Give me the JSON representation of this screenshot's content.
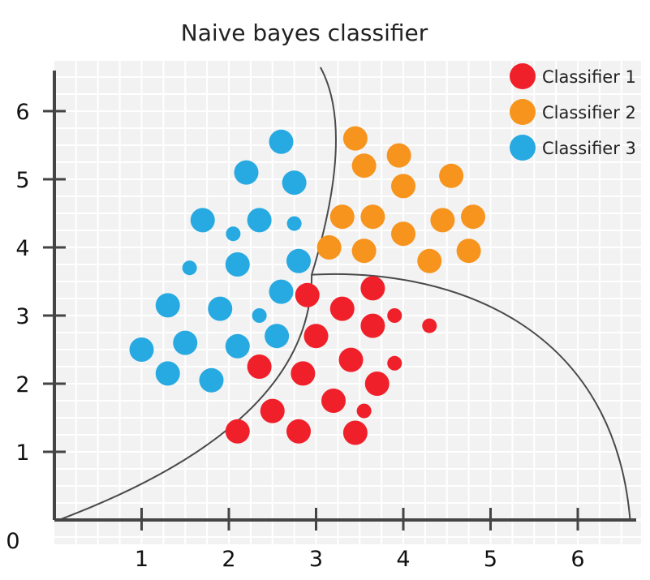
{
  "chart_data": {
    "type": "scatter",
    "title": "Naive bayes classifier",
    "xlabel": "",
    "ylabel": "",
    "xlim": [
      0,
      6.6
    ],
    "ylim": [
      0,
      6.6
    ],
    "x_ticks": [
      1,
      2,
      3,
      4,
      5,
      6
    ],
    "y_ticks": [
      1,
      2,
      3,
      4,
      5,
      6
    ],
    "origin_label": "0",
    "grid": true,
    "legend": "top-right",
    "series": [
      {
        "name": "Classifier 1",
        "color": "#f0202a",
        "points": [
          {
            "x": 2.9,
            "y": 3.3,
            "size": "large"
          },
          {
            "x": 3.3,
            "y": 3.1,
            "size": "large"
          },
          {
            "x": 3.65,
            "y": 3.4,
            "size": "large"
          },
          {
            "x": 3.9,
            "y": 3.0,
            "size": "small"
          },
          {
            "x": 4.3,
            "y": 2.85,
            "size": "small"
          },
          {
            "x": 3.65,
            "y": 2.85,
            "size": "large"
          },
          {
            "x": 3.0,
            "y": 2.7,
            "size": "large"
          },
          {
            "x": 3.4,
            "y": 2.35,
            "size": "large"
          },
          {
            "x": 3.9,
            "y": 2.3,
            "size": "small"
          },
          {
            "x": 2.35,
            "y": 2.25,
            "size": "large"
          },
          {
            "x": 2.85,
            "y": 2.15,
            "size": "large"
          },
          {
            "x": 3.7,
            "y": 2.0,
            "size": "large"
          },
          {
            "x": 3.2,
            "y": 1.75,
            "size": "large"
          },
          {
            "x": 2.5,
            "y": 1.6,
            "size": "large"
          },
          {
            "x": 3.55,
            "y": 1.6,
            "size": "small"
          },
          {
            "x": 2.1,
            "y": 1.3,
            "size": "large"
          },
          {
            "x": 2.8,
            "y": 1.3,
            "size": "large"
          },
          {
            "x": 3.45,
            "y": 1.28,
            "size": "large"
          }
        ]
      },
      {
        "name": "Classifier 2",
        "color": "#f7941d",
        "points": [
          {
            "x": 3.45,
            "y": 5.6,
            "size": "large"
          },
          {
            "x": 3.95,
            "y": 5.35,
            "size": "large"
          },
          {
            "x": 3.55,
            "y": 5.2,
            "size": "large"
          },
          {
            "x": 4.55,
            "y": 5.05,
            "size": "large"
          },
          {
            "x": 4.0,
            "y": 4.9,
            "size": "large"
          },
          {
            "x": 3.3,
            "y": 4.45,
            "size": "large"
          },
          {
            "x": 3.65,
            "y": 4.45,
            "size": "large"
          },
          {
            "x": 4.8,
            "y": 4.45,
            "size": "large"
          },
          {
            "x": 4.45,
            "y": 4.4,
            "size": "large"
          },
          {
            "x": 4.0,
            "y": 4.2,
            "size": "large"
          },
          {
            "x": 3.15,
            "y": 4.0,
            "size": "large"
          },
          {
            "x": 3.55,
            "y": 3.95,
            "size": "large"
          },
          {
            "x": 4.75,
            "y": 3.95,
            "size": "large"
          },
          {
            "x": 4.3,
            "y": 3.8,
            "size": "large"
          }
        ]
      },
      {
        "name": "Classifier 3",
        "color": "#27a9e1",
        "points": [
          {
            "x": 2.6,
            "y": 5.55,
            "size": "large"
          },
          {
            "x": 2.2,
            "y": 5.1,
            "size": "large"
          },
          {
            "x": 2.75,
            "y": 4.95,
            "size": "large"
          },
          {
            "x": 1.7,
            "y": 4.4,
            "size": "large"
          },
          {
            "x": 2.35,
            "y": 4.4,
            "size": "large"
          },
          {
            "x": 2.75,
            "y": 4.35,
            "size": "small"
          },
          {
            "x": 2.05,
            "y": 4.2,
            "size": "small"
          },
          {
            "x": 2.8,
            "y": 3.8,
            "size": "large"
          },
          {
            "x": 1.55,
            "y": 3.7,
            "size": "small"
          },
          {
            "x": 2.1,
            "y": 3.75,
            "size": "large"
          },
          {
            "x": 2.6,
            "y": 3.35,
            "size": "large"
          },
          {
            "x": 1.3,
            "y": 3.15,
            "size": "large"
          },
          {
            "x": 1.9,
            "y": 3.1,
            "size": "large"
          },
          {
            "x": 2.35,
            "y": 3.0,
            "size": "small"
          },
          {
            "x": 2.55,
            "y": 2.7,
            "size": "large"
          },
          {
            "x": 1.0,
            "y": 2.5,
            "size": "large"
          },
          {
            "x": 1.5,
            "y": 2.6,
            "size": "large"
          },
          {
            "x": 2.1,
            "y": 2.55,
            "size": "large"
          },
          {
            "x": 1.3,
            "y": 2.15,
            "size": "large"
          },
          {
            "x": 1.8,
            "y": 2.05,
            "size": "large"
          }
        ]
      }
    ]
  }
}
